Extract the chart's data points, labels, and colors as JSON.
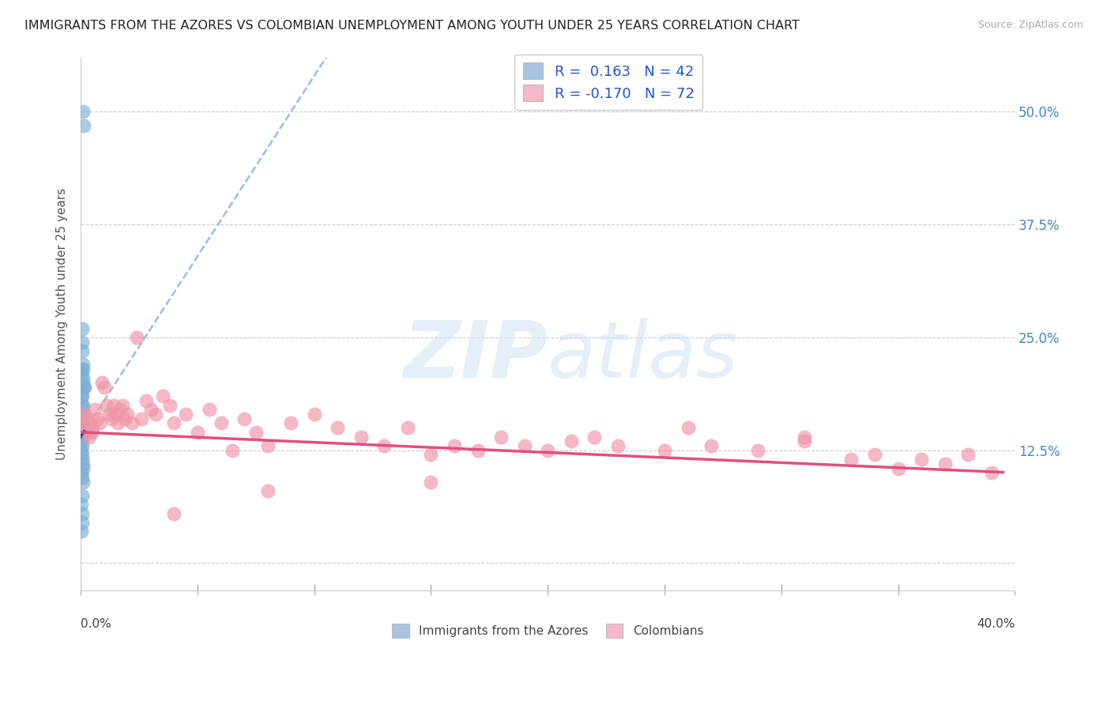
{
  "title": "IMMIGRANTS FROM THE AZORES VS COLOMBIAN UNEMPLOYMENT AMONG YOUTH UNDER 25 YEARS CORRELATION CHART",
  "source": "Source: ZipAtlas.com",
  "ylabel": "Unemployment Among Youth under 25 years",
  "xlim": [
    0.0,
    0.4
  ],
  "ylim": [
    -0.03,
    0.56
  ],
  "yticks": [
    0.0,
    0.125,
    0.25,
    0.375,
    0.5
  ],
  "ytick_labels": [
    "",
    "12.5%",
    "25.0%",
    "37.5%",
    "50.0%"
  ],
  "xticks": [
    0.0,
    0.05,
    0.1,
    0.15,
    0.2,
    0.25,
    0.3,
    0.35,
    0.4
  ],
  "grid_color": "#cccccc",
  "background_color": "#ffffff",
  "legend_r1": "R =  0.163   N = 42",
  "legend_r2": "R = -0.170   N = 72",
  "legend_color1": "#a8c4e0",
  "legend_color2": "#f4b8c8",
  "azores_color": "#7bafd4",
  "colombians_color": "#f093a8",
  "azores_line_color": "#1a44bb",
  "colombians_line_color": "#e0507a",
  "trend_line_color": "#99bbee",
  "azores_label": "Immigrants from the Azores",
  "colombians_label": "Colombians",
  "title_color": "#222222",
  "title_fontsize": 11.5,
  "azores_x": [
    0.0008,
    0.0012,
    0.0005,
    0.0006,
    0.0007,
    0.0009,
    0.0003,
    0.0004,
    0.001,
    0.0011,
    0.0013,
    0.0015,
    0.0004,
    0.0003,
    0.0006,
    0.0008,
    0.0005,
    0.0007,
    0.0009,
    0.0004,
    0.0006,
    0.0003,
    0.0005,
    0.0007,
    0.001,
    0.0008,
    0.0006,
    0.0004,
    0.0005,
    0.0003,
    0.0007,
    0.0006,
    0.0008,
    0.0009,
    0.0004,
    0.0005,
    0.0011,
    0.0006,
    0.0003,
    0.0007,
    0.0005,
    0.0004
  ],
  "azores_y": [
    0.5,
    0.485,
    0.26,
    0.245,
    0.235,
    0.22,
    0.215,
    0.21,
    0.205,
    0.2,
    0.195,
    0.195,
    0.19,
    0.185,
    0.185,
    0.175,
    0.175,
    0.17,
    0.165,
    0.16,
    0.155,
    0.155,
    0.15,
    0.145,
    0.215,
    0.145,
    0.14,
    0.135,
    0.13,
    0.125,
    0.12,
    0.115,
    0.11,
    0.105,
    0.1,
    0.095,
    0.09,
    0.075,
    0.065,
    0.055,
    0.045,
    0.035
  ],
  "colombians_x": [
    0.001,
    0.0015,
    0.002,
    0.0025,
    0.003,
    0.0035,
    0.004,
    0.0045,
    0.005,
    0.006,
    0.007,
    0.008,
    0.009,
    0.01,
    0.011,
    0.012,
    0.013,
    0.014,
    0.015,
    0.016,
    0.017,
    0.018,
    0.019,
    0.02,
    0.022,
    0.024,
    0.026,
    0.028,
    0.03,
    0.032,
    0.035,
    0.038,
    0.04,
    0.045,
    0.05,
    0.055,
    0.06,
    0.065,
    0.07,
    0.075,
    0.08,
    0.09,
    0.1,
    0.11,
    0.12,
    0.13,
    0.14,
    0.15,
    0.16,
    0.17,
    0.18,
    0.19,
    0.2,
    0.21,
    0.22,
    0.23,
    0.25,
    0.27,
    0.29,
    0.31,
    0.33,
    0.34,
    0.35,
    0.36,
    0.37,
    0.38,
    0.39,
    0.31,
    0.26,
    0.15,
    0.08,
    0.04
  ],
  "colombians_y": [
    0.155,
    0.165,
    0.15,
    0.145,
    0.16,
    0.14,
    0.155,
    0.145,
    0.15,
    0.17,
    0.16,
    0.155,
    0.2,
    0.195,
    0.175,
    0.165,
    0.16,
    0.175,
    0.165,
    0.155,
    0.17,
    0.175,
    0.16,
    0.165,
    0.155,
    0.25,
    0.16,
    0.18,
    0.17,
    0.165,
    0.185,
    0.175,
    0.155,
    0.165,
    0.145,
    0.17,
    0.155,
    0.125,
    0.16,
    0.145,
    0.13,
    0.155,
    0.165,
    0.15,
    0.14,
    0.13,
    0.15,
    0.12,
    0.13,
    0.125,
    0.14,
    0.13,
    0.125,
    0.135,
    0.14,
    0.13,
    0.125,
    0.13,
    0.125,
    0.135,
    0.115,
    0.12,
    0.105,
    0.115,
    0.11,
    0.12,
    0.1,
    0.14,
    0.15,
    0.09,
    0.08,
    0.055
  ]
}
